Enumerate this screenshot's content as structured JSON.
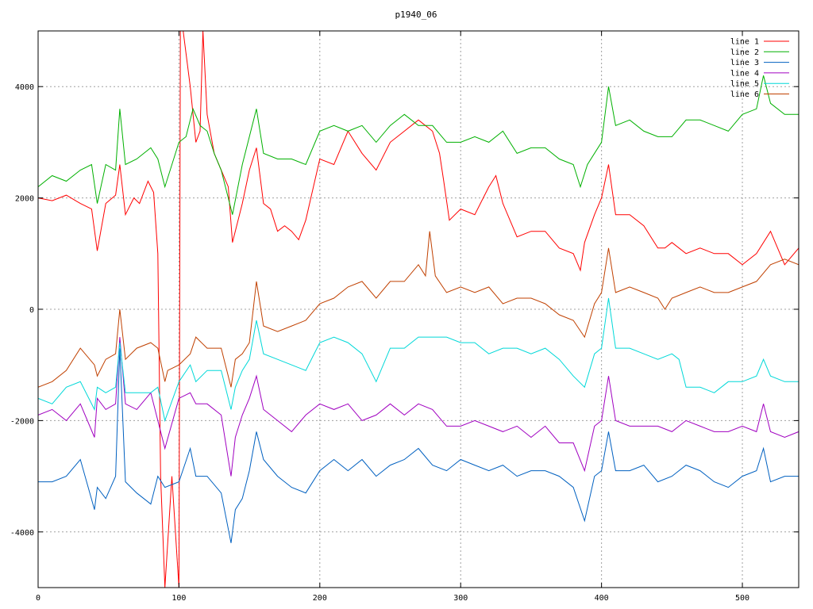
{
  "chart_data": {
    "type": "line",
    "title": "p1940_06",
    "xlabel": "",
    "ylabel": "",
    "xlim": [
      0,
      540
    ],
    "ylim": [
      -5000,
      5000
    ],
    "xticks": [
      0,
      100,
      200,
      300,
      400,
      500
    ],
    "yticks": [
      -4000,
      -2000,
      0,
      2000,
      4000
    ],
    "xtick_labels": [
      "0",
      "100",
      "200",
      "300",
      "400",
      "500"
    ],
    "ytick_labels": [
      "-4000",
      "-2000",
      "0",
      "2000",
      "4000"
    ],
    "grid": true,
    "legend_position": "top-right",
    "series": [
      {
        "name": "line 1",
        "color": "#ff0000",
        "x": [
          0,
          10,
          20,
          30,
          38,
          42,
          48,
          55,
          58,
          62,
          68,
          72,
          78,
          82,
          85,
          87,
          90,
          95,
          100,
          101,
          103,
          108,
          112,
          115,
          117,
          120,
          125,
          130,
          135,
          138,
          145,
          150,
          155,
          160,
          165,
          170,
          175,
          180,
          185,
          190,
          200,
          210,
          220,
          230,
          240,
          250,
          260,
          270,
          280,
          285,
          288,
          292,
          300,
          310,
          320,
          325,
          330,
          340,
          350,
          360,
          370,
          380,
          385,
          388,
          395,
          400,
          405,
          410,
          420,
          430,
          440,
          445,
          450,
          460,
          470,
          480,
          490,
          500,
          510,
          520,
          530,
          540
        ],
        "y": [
          2000,
          1950,
          2050,
          1900,
          1800,
          1050,
          1900,
          2050,
          2600,
          1700,
          2000,
          1900,
          2300,
          2100,
          1000,
          -3000,
          -5000,
          -3000,
          -5000,
          5000,
          5000,
          4000,
          3000,
          3200,
          5000,
          3500,
          2800,
          2500,
          2200,
          1200,
          1900,
          2500,
          2900,
          1900,
          1800,
          1400,
          1500,
          1400,
          1250,
          1600,
          2700,
          2600,
          3200,
          2800,
          2500,
          3000,
          3200,
          3400,
          3200,
          2800,
          2300,
          1600,
          1800,
          1700,
          2200,
          2400,
          1900,
          1300,
          1400,
          1400,
          1100,
          1000,
          700,
          1200,
          1700,
          2000,
          2600,
          1700,
          1700,
          1500,
          1100,
          1100,
          1200,
          1000,
          1100,
          1000,
          1000,
          800,
          1000,
          1400,
          800,
          1100
        ]
      },
      {
        "name": "line 2",
        "color": "#00b000",
        "x": [
          0,
          10,
          20,
          30,
          38,
          42,
          48,
          55,
          58,
          62,
          70,
          80,
          85,
          90,
          100,
          105,
          110,
          115,
          120,
          125,
          130,
          138,
          145,
          155,
          160,
          170,
          180,
          190,
          200,
          210,
          220,
          230,
          240,
          250,
          260,
          270,
          280,
          290,
          300,
          310,
          320,
          330,
          340,
          350,
          360,
          370,
          380,
          385,
          390,
          400,
          405,
          410,
          420,
          430,
          440,
          450,
          460,
          470,
          480,
          490,
          500,
          510,
          515,
          520,
          530,
          540
        ],
        "y": [
          2200,
          2400,
          2300,
          2500,
          2600,
          1900,
          2600,
          2500,
          3600,
          2600,
          2700,
          2900,
          2700,
          2200,
          3000,
          3100,
          3600,
          3300,
          3200,
          2800,
          2500,
          1700,
          2600,
          3600,
          2800,
          2700,
          2700,
          2600,
          3200,
          3300,
          3200,
          3300,
          3000,
          3300,
          3500,
          3300,
          3300,
          3000,
          3000,
          3100,
          3000,
          3200,
          2800,
          2900,
          2900,
          2700,
          2600,
          2200,
          2600,
          3000,
          4000,
          3300,
          3400,
          3200,
          3100,
          3100,
          3400,
          3400,
          3300,
          3200,
          3500,
          3600,
          4200,
          3700,
          3500,
          3500
        ]
      },
      {
        "name": "line 3",
        "color": "#0060c0",
        "x": [
          0,
          10,
          20,
          30,
          40,
          42,
          48,
          55,
          58,
          62,
          70,
          80,
          85,
          90,
          100,
          108,
          112,
          120,
          130,
          137,
          140,
          145,
          150,
          155,
          160,
          170,
          180,
          190,
          200,
          210,
          220,
          230,
          240,
          250,
          260,
          270,
          280,
          290,
          300,
          310,
          320,
          330,
          340,
          350,
          360,
          370,
          380,
          388,
          395,
          400,
          405,
          410,
          420,
          430,
          440,
          450,
          460,
          470,
          480,
          490,
          500,
          510,
          515,
          520,
          530,
          540
        ],
        "y": [
          -3100,
          -3100,
          -3000,
          -2700,
          -3600,
          -3200,
          -3400,
          -3000,
          -700,
          -3100,
          -3300,
          -3500,
          -3000,
          -3200,
          -3100,
          -2500,
          -3000,
          -3000,
          -3300,
          -4200,
          -3600,
          -3400,
          -2900,
          -2200,
          -2700,
          -3000,
          -3200,
          -3300,
          -2900,
          -2700,
          -2900,
          -2700,
          -3000,
          -2800,
          -2700,
          -2500,
          -2800,
          -2900,
          -2700,
          -2800,
          -2900,
          -2800,
          -3000,
          -2900,
          -2900,
          -3000,
          -3200,
          -3800,
          -3000,
          -2900,
          -2200,
          -2900,
          -2900,
          -2800,
          -3100,
          -3000,
          -2800,
          -2900,
          -3100,
          -3200,
          -3000,
          -2900,
          -2500,
          -3100,
          -3000,
          -3000
        ]
      },
      {
        "name": "line 4",
        "color": "#a000c0",
        "x": [
          0,
          10,
          20,
          30,
          40,
          42,
          48,
          55,
          58,
          62,
          70,
          80,
          85,
          90,
          100,
          108,
          112,
          120,
          130,
          137,
          140,
          145,
          150,
          155,
          160,
          170,
          180,
          190,
          200,
          210,
          220,
          230,
          240,
          250,
          260,
          270,
          280,
          290,
          300,
          310,
          320,
          330,
          340,
          350,
          360,
          370,
          380,
          388,
          395,
          400,
          405,
          410,
          420,
          430,
          440,
          450,
          460,
          470,
          480,
          490,
          500,
          510,
          515,
          520,
          530,
          540
        ],
        "y": [
          -1900,
          -1800,
          -2000,
          -1700,
          -2300,
          -1600,
          -1800,
          -1700,
          -500,
          -1700,
          -1800,
          -1500,
          -2000,
          -2500,
          -1600,
          -1500,
          -1700,
          -1700,
          -1900,
          -3000,
          -2300,
          -1900,
          -1600,
          -1200,
          -1800,
          -2000,
          -2200,
          -1900,
          -1700,
          -1800,
          -1700,
          -2000,
          -1900,
          -1700,
          -1900,
          -1700,
          -1800,
          -2100,
          -2100,
          -2000,
          -2100,
          -2200,
          -2100,
          -2300,
          -2100,
          -2400,
          -2400,
          -2900,
          -2100,
          -2000,
          -1200,
          -2000,
          -2100,
          -2100,
          -2100,
          -2200,
          -2000,
          -2100,
          -2200,
          -2200,
          -2100,
          -2200,
          -1700,
          -2200,
          -2300,
          -2200
        ]
      },
      {
        "name": "line 5",
        "color": "#00d8d8",
        "x": [
          0,
          10,
          20,
          30,
          40,
          42,
          48,
          55,
          58,
          62,
          70,
          80,
          85,
          90,
          100,
          108,
          112,
          120,
          130,
          137,
          140,
          145,
          150,
          155,
          160,
          170,
          180,
          190,
          200,
          210,
          220,
          230,
          240,
          250,
          260,
          270,
          280,
          290,
          300,
          310,
          320,
          330,
          340,
          350,
          360,
          370,
          380,
          388,
          395,
          400,
          405,
          410,
          420,
          430,
          440,
          450,
          455,
          460,
          470,
          480,
          490,
          500,
          510,
          515,
          520,
          530,
          540
        ],
        "y": [
          -1600,
          -1700,
          -1400,
          -1300,
          -1800,
          -1400,
          -1500,
          -1400,
          -600,
          -1500,
          -1500,
          -1500,
          -1400,
          -2000,
          -1300,
          -1000,
          -1300,
          -1100,
          -1100,
          -1800,
          -1400,
          -1100,
          -900,
          -200,
          -800,
          -900,
          -1000,
          -1100,
          -600,
          -500,
          -600,
          -800,
          -1300,
          -700,
          -700,
          -500,
          -500,
          -500,
          -600,
          -600,
          -800,
          -700,
          -700,
          -800,
          -700,
          -900,
          -1200,
          -1400,
          -800,
          -700,
          200,
          -700,
          -700,
          -800,
          -900,
          -800,
          -900,
          -1400,
          -1400,
          -1500,
          -1300,
          -1300,
          -1200,
          -900,
          -1200,
          -1300,
          -1300
        ]
      },
      {
        "name": "line 6",
        "color": "#c04000",
        "x": [
          0,
          10,
          20,
          30,
          40,
          42,
          48,
          55,
          58,
          62,
          70,
          80,
          85,
          90,
          92,
          100,
          108,
          112,
          120,
          130,
          137,
          140,
          145,
          150,
          155,
          160,
          170,
          180,
          190,
          200,
          210,
          220,
          230,
          240,
          250,
          260,
          270,
          275,
          278,
          282,
          290,
          300,
          310,
          320,
          330,
          340,
          350,
          360,
          370,
          380,
          388,
          395,
          400,
          405,
          410,
          420,
          430,
          440,
          445,
          450,
          460,
          470,
          480,
          490,
          500,
          510,
          520,
          530,
          540
        ],
        "y": [
          -1400,
          -1300,
          -1100,
          -700,
          -1000,
          -1200,
          -900,
          -800,
          0,
          -900,
          -700,
          -600,
          -700,
          -1300,
          -1100,
          -1000,
          -800,
          -500,
          -700,
          -700,
          -1400,
          -900,
          -800,
          -600,
          500,
          -300,
          -400,
          -300,
          -200,
          100,
          200,
          400,
          500,
          200,
          500,
          500,
          800,
          600,
          1400,
          600,
          300,
          400,
          300,
          400,
          100,
          200,
          200,
          100,
          -100,
          -200,
          -500,
          100,
          300,
          1100,
          300,
          400,
          300,
          200,
          0,
          200,
          300,
          400,
          300,
          300,
          400,
          500,
          800,
          900,
          800
        ]
      }
    ]
  }
}
